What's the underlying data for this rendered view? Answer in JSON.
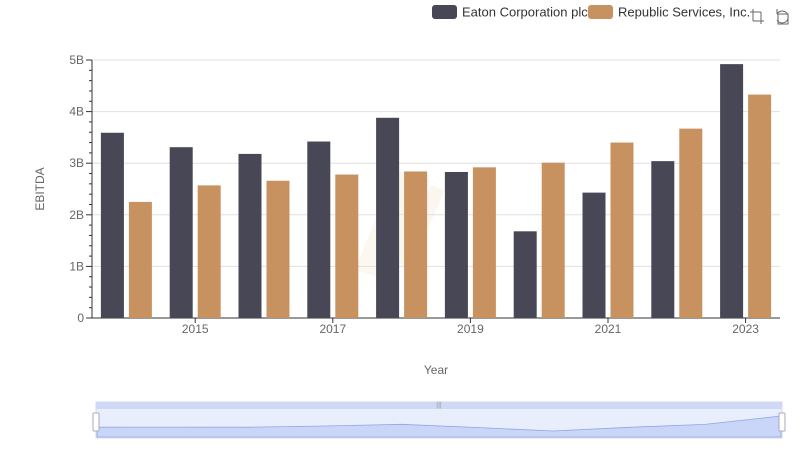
{
  "chart_data": {
    "type": "bar",
    "x": [
      2014,
      2015,
      2016,
      2017,
      2018,
      2019,
      2020,
      2021,
      2022,
      2023
    ],
    "series": [
      {
        "name": "Eaton Corporation plc",
        "color": "#474756",
        "values": [
          3.59,
          3.31,
          3.18,
          3.42,
          3.88,
          2.83,
          1.68,
          2.43,
          3.04,
          4.92
        ]
      },
      {
        "name": "Republic Services, Inc.",
        "color": "#c89160",
        "values": [
          2.25,
          2.57,
          2.66,
          2.78,
          2.84,
          2.92,
          3.01,
          3.4,
          3.67,
          4.33
        ]
      }
    ],
    "xlabel": "Year",
    "ylabel": "EBITDA",
    "ylim": [
      0,
      5
    ],
    "y_ticks": [
      0,
      1,
      2,
      3,
      4,
      5
    ],
    "y_tick_labels": [
      "0",
      "1B",
      "2B",
      "3B",
      "4B",
      "5B"
    ],
    "x_tick_labels": [
      "2015",
      "2017",
      "2019",
      "2021",
      "2023"
    ],
    "grid": true,
    "legend_position": "top-right"
  },
  "toolbar": {
    "zoom_icon": "zoom-icon",
    "restore_icon": "restore-icon"
  },
  "zoom_slider": {
    "start": 0,
    "end": 1
  }
}
